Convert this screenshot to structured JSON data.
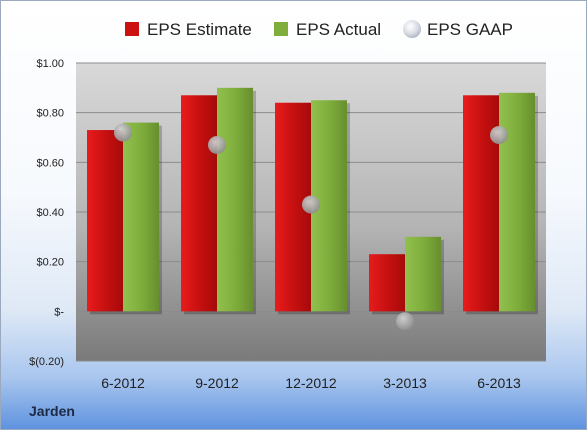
{
  "company": "Jarden",
  "chart_data": {
    "type": "bar",
    "categories": [
      "6-2012",
      "9-2012",
      "12-2012",
      "3-2013",
      "6-2013"
    ],
    "series": [
      {
        "name": "EPS Estimate",
        "kind": "bar",
        "color": "#cc1111",
        "values": [
          0.73,
          0.87,
          0.84,
          0.23,
          0.87
        ]
      },
      {
        "name": "EPS Actual",
        "kind": "bar",
        "color": "#7fae3c",
        "values": [
          0.76,
          0.9,
          0.85,
          0.3,
          0.88
        ]
      },
      {
        "name": "EPS GAAP",
        "kind": "scatter",
        "color": "#b4b4b4",
        "values": [
          0.72,
          0.67,
          0.43,
          -0.04,
          0.71
        ]
      }
    ],
    "yticks": [
      1.0,
      0.8,
      0.6,
      0.4,
      0.2,
      0,
      -0.2
    ],
    "ytick_labels": [
      "$1.00",
      "$0.80",
      "$0.60",
      "$0.40",
      "$0.20",
      "$-",
      "$(0.20)"
    ],
    "ylim": [
      -0.2,
      1.0
    ],
    "grid": true,
    "legend_position": "top"
  }
}
